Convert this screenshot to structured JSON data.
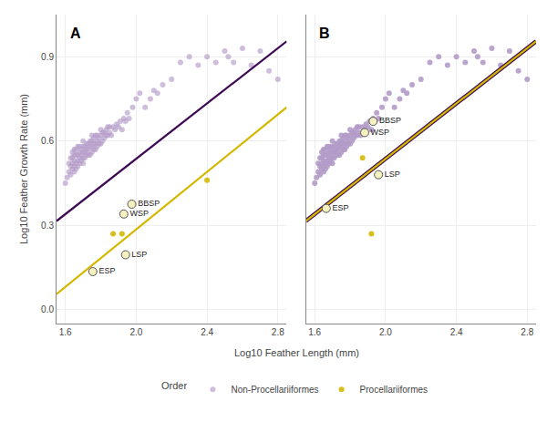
{
  "chart_data": [
    {
      "type": "scatter",
      "title": "A",
      "xlabel": "Log10 Feather Length (mm)",
      "ylabel": "Log10 Feather Growth Rate (mm)",
      "xlim": [
        1.55,
        2.85
      ],
      "ylim": [
        -0.05,
        1.05
      ],
      "xticks": [
        1.6,
        {
          "value": 2.0,
          "label": "2.0"
        },
        2.4,
        2.8
      ],
      "yticks": [
        {
          "value": 0.0,
          "label": "0.0"
        },
        0.3,
        0.6,
        0.9
      ],
      "grid": true,
      "legend": "bottom",
      "legend_title": "Order",
      "series": [
        {
          "name": "Non-Procellariiformes",
          "type": "scatter",
          "color": "#b39bc8",
          "x": [
            1.6,
            1.61,
            1.62,
            1.62,
            1.63,
            1.63,
            1.63,
            1.64,
            1.64,
            1.64,
            1.64,
            1.65,
            1.65,
            1.65,
            1.65,
            1.65,
            1.66,
            1.66,
            1.66,
            1.66,
            1.67,
            1.67,
            1.67,
            1.67,
            1.68,
            1.68,
            1.68,
            1.68,
            1.69,
            1.69,
            1.69,
            1.7,
            1.7,
            1.7,
            1.7,
            1.7,
            1.71,
            1.71,
            1.71,
            1.72,
            1.72,
            1.72,
            1.73,
            1.73,
            1.73,
            1.74,
            1.74,
            1.74,
            1.75,
            1.75,
            1.75,
            1.75,
            1.76,
            1.76,
            1.76,
            1.77,
            1.77,
            1.77,
            1.78,
            1.78,
            1.78,
            1.79,
            1.79,
            1.8,
            1.8,
            1.8,
            1.81,
            1.81,
            1.82,
            1.82,
            1.83,
            1.83,
            1.84,
            1.84,
            1.85,
            1.85,
            1.86,
            1.87,
            1.88,
            1.89,
            1.9,
            1.91,
            1.92,
            1.93,
            1.94,
            1.95,
            1.96,
            1.98,
            2.0,
            2.02,
            2.05,
            2.08,
            2.1,
            2.12,
            2.15,
            2.2,
            2.25,
            2.3,
            2.35,
            2.4,
            2.45,
            2.5,
            2.52,
            2.55,
            2.6,
            2.65,
            2.7,
            2.75,
            2.8
          ],
          "values": [
            0.45,
            0.47,
            0.49,
            0.52,
            0.48,
            0.51,
            0.54,
            0.5,
            0.52,
            0.54,
            0.56,
            0.49,
            0.51,
            0.53,
            0.55,
            0.57,
            0.5,
            0.52,
            0.55,
            0.57,
            0.51,
            0.53,
            0.55,
            0.58,
            0.52,
            0.54,
            0.56,
            0.58,
            0.53,
            0.55,
            0.57,
            0.52,
            0.54,
            0.56,
            0.58,
            0.6,
            0.54,
            0.56,
            0.58,
            0.55,
            0.57,
            0.59,
            0.55,
            0.57,
            0.59,
            0.55,
            0.58,
            0.6,
            0.56,
            0.58,
            0.6,
            0.62,
            0.57,
            0.59,
            0.61,
            0.57,
            0.59,
            0.62,
            0.58,
            0.6,
            0.62,
            0.59,
            0.61,
            0.59,
            0.62,
            0.64,
            0.6,
            0.63,
            0.61,
            0.63,
            0.62,
            0.64,
            0.62,
            0.65,
            0.63,
            0.65,
            0.62,
            0.65,
            0.64,
            0.66,
            0.65,
            0.67,
            0.64,
            0.68,
            0.67,
            0.7,
            0.68,
            0.72,
            0.75,
            0.77,
            0.72,
            0.75,
            0.78,
            0.77,
            0.8,
            0.82,
            0.88,
            0.9,
            0.87,
            0.9,
            0.88,
            0.92,
            0.9,
            0.88,
            0.93,
            0.87,
            0.92,
            0.85,
            0.82
          ]
        },
        {
          "type": "line",
          "color": "#3d0954",
          "x": [
            1.55,
            2.85
          ],
          "values": [
            0.315,
            0.955
          ]
        },
        {
          "type": "line",
          "color": "#d4b800",
          "x": [
            1.55,
            2.85
          ],
          "values": [
            0.055,
            0.72
          ]
        },
        {
          "name": "Procellariiformes",
          "type": "scatter",
          "color": "#d4b800",
          "x": [
            1.87,
            1.92,
            2.4
          ],
          "values": [
            0.27,
            0.27,
            0.46
          ]
        }
      ],
      "annotations": [
        {
          "text": "BBSP",
          "x": 1.975,
          "y": 0.375
        },
        {
          "text": "WSP",
          "x": 1.93,
          "y": 0.34
        },
        {
          "text": "LSP",
          "x": 1.94,
          "y": 0.195
        },
        {
          "text": "ESP",
          "x": 1.755,
          "y": 0.135
        }
      ]
    },
    {
      "type": "scatter",
      "title": "B",
      "xlim": [
        1.55,
        2.85
      ],
      "ylim": [
        -0.05,
        1.05
      ],
      "xticks": [
        1.6,
        {
          "value": 2.0,
          "label": "2.0"
        },
        2.4,
        2.8
      ],
      "yticks": [
        {
          "value": 0.0,
          "label": "0.0"
        },
        0.3,
        0.6,
        0.9
      ],
      "grid": true,
      "tick_labels": "x",
      "series": [
        {
          "name": "Non-Procellariiformes",
          "type": "scatter",
          "color": "#b39bc8",
          "x": [
            1.6,
            1.61,
            1.62,
            1.62,
            1.63,
            1.63,
            1.63,
            1.64,
            1.64,
            1.64,
            1.64,
            1.65,
            1.65,
            1.65,
            1.65,
            1.65,
            1.66,
            1.66,
            1.66,
            1.66,
            1.67,
            1.67,
            1.67,
            1.67,
            1.68,
            1.68,
            1.68,
            1.68,
            1.69,
            1.69,
            1.69,
            1.7,
            1.7,
            1.7,
            1.7,
            1.7,
            1.71,
            1.71,
            1.71,
            1.72,
            1.72,
            1.72,
            1.73,
            1.73,
            1.73,
            1.74,
            1.74,
            1.74,
            1.75,
            1.75,
            1.75,
            1.75,
            1.76,
            1.76,
            1.76,
            1.77,
            1.77,
            1.77,
            1.78,
            1.78,
            1.78,
            1.79,
            1.79,
            1.8,
            1.8,
            1.8,
            1.81,
            1.81,
            1.82,
            1.82,
            1.83,
            1.83,
            1.84,
            1.84,
            1.85,
            1.85,
            1.86,
            1.87,
            1.88,
            1.89,
            1.9,
            1.91,
            1.92,
            1.93,
            1.94,
            1.95,
            1.96,
            1.98,
            2.0,
            2.02,
            2.05,
            2.08,
            2.1,
            2.12,
            2.15,
            2.2,
            2.25,
            2.3,
            2.35,
            2.4,
            2.45,
            2.5,
            2.52,
            2.55,
            2.6,
            2.65,
            2.7,
            2.75,
            2.8
          ],
          "values": [
            0.45,
            0.47,
            0.49,
            0.52,
            0.48,
            0.51,
            0.54,
            0.5,
            0.52,
            0.54,
            0.56,
            0.49,
            0.51,
            0.53,
            0.55,
            0.57,
            0.5,
            0.52,
            0.55,
            0.57,
            0.51,
            0.53,
            0.55,
            0.58,
            0.52,
            0.54,
            0.56,
            0.58,
            0.53,
            0.55,
            0.57,
            0.52,
            0.54,
            0.56,
            0.58,
            0.6,
            0.54,
            0.56,
            0.58,
            0.55,
            0.57,
            0.59,
            0.55,
            0.57,
            0.59,
            0.55,
            0.58,
            0.6,
            0.56,
            0.58,
            0.6,
            0.62,
            0.57,
            0.59,
            0.61,
            0.57,
            0.59,
            0.62,
            0.58,
            0.6,
            0.62,
            0.59,
            0.61,
            0.59,
            0.62,
            0.64,
            0.6,
            0.63,
            0.61,
            0.63,
            0.62,
            0.64,
            0.62,
            0.65,
            0.63,
            0.65,
            0.62,
            0.65,
            0.64,
            0.66,
            0.65,
            0.67,
            0.64,
            0.68,
            0.67,
            0.7,
            0.68,
            0.72,
            0.75,
            0.77,
            0.72,
            0.75,
            0.78,
            0.77,
            0.8,
            0.82,
            0.88,
            0.9,
            0.87,
            0.9,
            0.88,
            0.92,
            0.9,
            0.88,
            0.93,
            0.87,
            0.92,
            0.85,
            0.82
          ]
        },
        {
          "type": "line",
          "color": "#3d0954",
          "x": [
            1.55,
            2.85
          ],
          "values": [
            0.315,
            0.955
          ]
        },
        {
          "type": "line",
          "color": "#d4b800",
          "x": [
            1.55,
            2.85
          ],
          "values": [
            0.315,
            0.955
          ]
        },
        {
          "name": "Procellariiformes",
          "type": "scatter",
          "color": "#d4b800",
          "x": [
            1.87,
            1.92
          ],
          "values": [
            0.54,
            0.27
          ]
        }
      ],
      "annotations": [
        {
          "text": "BBSP",
          "x": 1.93,
          "y": 0.67
        },
        {
          "text": "WSP",
          "x": 1.882,
          "y": 0.63
        },
        {
          "text": "LSP",
          "x": 1.96,
          "y": 0.48
        },
        {
          "text": "ESP",
          "x": 1.665,
          "y": 0.36
        }
      ]
    }
  ]
}
